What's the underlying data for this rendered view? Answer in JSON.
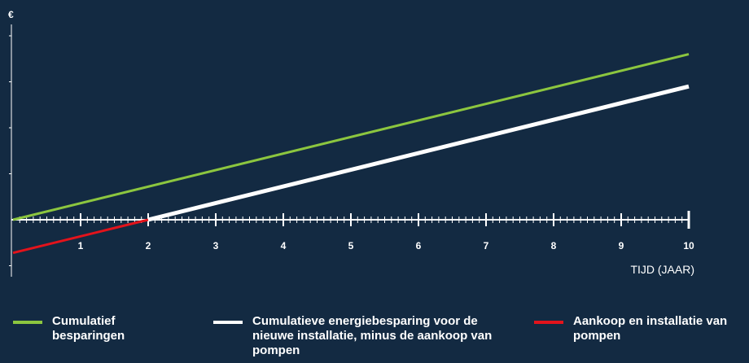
{
  "chart_data": {
    "type": "line",
    "y_unit": "€",
    "xlabel": "TIJD (JAAR)",
    "xlim": [
      0,
      10
    ],
    "ylim": [
      -1.25,
      4
    ],
    "x_ticks": [
      "1",
      "2",
      "3",
      "4",
      "5",
      "6",
      "7",
      "8",
      "9",
      "10"
    ],
    "grid": false,
    "legend_position": "bottom",
    "series": [
      {
        "name": "Cumulatief besparingen",
        "color": "#8cc63f",
        "x": [
          0,
          10
        ],
        "y": [
          0,
          3.6
        ]
      },
      {
        "name": "Cumulatieve energiebesparing voor de nieuwe installatie, minus de aankoop van pompen",
        "color": "#ffffff",
        "x": [
          2,
          10
        ],
        "y": [
          0,
          2.9
        ]
      },
      {
        "name": "Aankoop en installatie van pompen",
        "color": "#e3131b",
        "x": [
          0,
          2
        ],
        "y": [
          -0.72,
          0
        ]
      }
    ]
  }
}
